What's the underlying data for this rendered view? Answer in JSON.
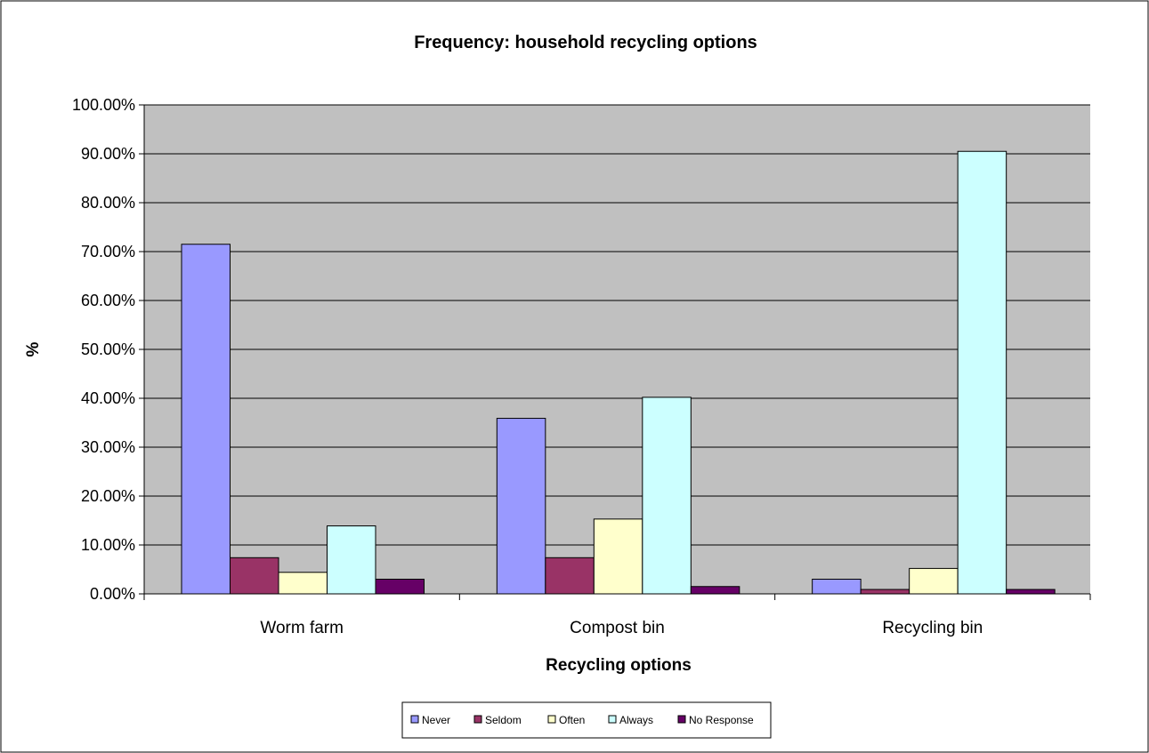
{
  "colors": {
    "plot_background": "#c0c0c0",
    "gridline": "#000000",
    "bar_outline": "#000000",
    "series": {
      "Never": "#9999ff",
      "Seldom": "#993366",
      "Often": "#ffffcc",
      "Always": "#ccffff",
      "No Response": "#660066"
    }
  },
  "chart_data": {
    "type": "bar",
    "title": "Frequency: household recycling options",
    "xlabel": "Recycling options",
    "ylabel": "%",
    "categories": [
      "Worm farm",
      "Compost bin",
      "Recycling bin"
    ],
    "series": [
      {
        "name": "Never",
        "values": [
          71.5,
          35.9,
          3.0
        ]
      },
      {
        "name": "Seldom",
        "values": [
          7.4,
          7.4,
          0.9
        ]
      },
      {
        "name": "Often",
        "values": [
          4.4,
          15.3,
          5.2
        ]
      },
      {
        "name": "Always",
        "values": [
          13.9,
          40.2,
          90.5
        ]
      },
      {
        "name": "No Response",
        "values": [
          3.0,
          1.5,
          0.9
        ]
      }
    ],
    "ylim": [
      0,
      100
    ],
    "yticks": [
      "0.00%",
      "10.00%",
      "20.00%",
      "30.00%",
      "40.00%",
      "50.00%",
      "60.00%",
      "70.00%",
      "80.00%",
      "90.00%",
      "100.00%"
    ],
    "grid": true,
    "legend_position": "bottom"
  }
}
